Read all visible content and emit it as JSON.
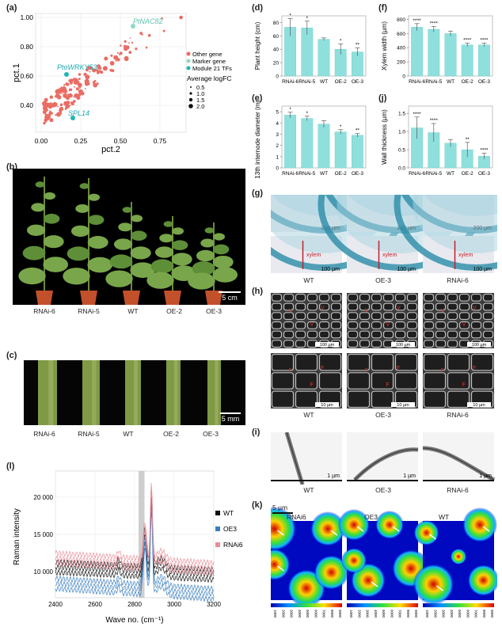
{
  "panels": {
    "a": "(a)",
    "b": "(b)",
    "c": "(c)",
    "d": "(d)",
    "e": "(e)",
    "f": "(f)",
    "g": "(g)",
    "h": "(h)",
    "i": "(i)",
    "j": "(j)",
    "k": "(k)",
    "l": "(l)"
  },
  "scatter_a": {
    "xlabel": "pct.2",
    "ylabel": "pct.1",
    "xticks": [
      "0.00",
      "0.25",
      "0.50",
      "0.75"
    ],
    "yticks": [
      "0.40",
      "0.60",
      "0.80",
      "1.00"
    ],
    "annotations": [
      "PtNAC82",
      "PtoWRKY53",
      "SPL14"
    ],
    "legend_items": [
      "Other gene",
      "Marker gene",
      "Module 21 TFs"
    ],
    "size_title": "Average logFC",
    "size_items": [
      "0.5",
      "1.0",
      "1.5",
      "2.0"
    ],
    "colors": {
      "other": "#ea6c63",
      "marker": "#8fd8c8",
      "module": "#1fb5b5"
    }
  },
  "photo_b": {
    "labels": [
      "RNAi-6",
      "RNAi-5",
      "WT",
      "OE-2",
      "OE-3"
    ],
    "scale": "5 cm"
  },
  "photo_c": {
    "labels": [
      "RNAi-6",
      "RNAi-5",
      "WT",
      "OE-2",
      "OE-3"
    ],
    "scale": "5 mm"
  },
  "micro_g": {
    "labels": [
      "WT",
      "OE-3",
      "RNAi-6"
    ],
    "scale_top": "200 µm",
    "scale_bottom": "100 µm",
    "xylem": "xylem"
  },
  "micro_h": {
    "labels": [
      "WT",
      "OE-3",
      "RNAi-6"
    ],
    "scale_top": "100 µm",
    "scale_bottom": "10 µm",
    "v": "V",
    "f": "F"
  },
  "micro_i": {
    "labels": [
      "WT",
      "OE-3",
      "RNAi-6"
    ],
    "scale": "1 µm"
  },
  "heatmap_k": {
    "labels": [
      "RNAi6",
      "OE3",
      "WT"
    ],
    "scale": "5 µm",
    "colorbar_ticks": [
      "1000",
      "2000",
      "3000",
      "4000",
      "5000",
      "6000",
      "7000",
      "8000",
      "9000"
    ]
  },
  "chart_data": [
    {
      "id": "d",
      "type": "bar",
      "ylabel": "Plant height (cm)",
      "categories": [
        "RNAi-6",
        "RNAi-5",
        "WT",
        "OE-2",
        "OE-3"
      ],
      "values": [
        73,
        72,
        55,
        40,
        36
      ],
      "errors": [
        13,
        10,
        2,
        8,
        6
      ],
      "significance": [
        "*",
        "*",
        "",
        "*",
        "**"
      ],
      "ylim": [
        0,
        90
      ],
      "yticks": [
        "0",
        "20",
        "40",
        "60",
        "80"
      ]
    },
    {
      "id": "e",
      "type": "bar",
      "ylabel": "13th internode diameter (mm)",
      "categories": [
        "RNAi-6",
        "RNAi-5",
        "WT",
        "OE-2",
        "OE-3"
      ],
      "values": [
        4.7,
        4.4,
        3.9,
        3.2,
        2.9
      ],
      "errors": [
        0.25,
        0.2,
        0.3,
        0.2,
        0.15
      ],
      "significance": [
        "*",
        "*",
        "",
        "*",
        "**"
      ],
      "ylim": [
        0,
        5.5
      ],
      "yticks": [
        "0",
        "1",
        "2",
        "3",
        "4",
        "5"
      ]
    },
    {
      "id": "f",
      "type": "bar",
      "ylabel": "Xylem width (µm)",
      "categories": [
        "RNAi-6",
        "RNAi-5",
        "WT",
        "OE-2",
        "OE-3"
      ],
      "values": [
        690,
        660,
        600,
        440,
        440
      ],
      "errors": [
        50,
        40,
        35,
        25,
        25
      ],
      "significance": [
        "****",
        "****",
        "",
        "****",
        "****"
      ],
      "ylim": [
        0,
        850
      ],
      "yticks": [
        "0",
        "200",
        "400",
        "600",
        "800"
      ]
    },
    {
      "id": "j",
      "type": "bar",
      "ylabel": "Wall thickness (µm)",
      "categories": [
        "RNAi-6",
        "RNAi-5",
        "WT",
        "OE-2",
        "OE-3"
      ],
      "values": [
        1.1,
        0.97,
        0.68,
        0.5,
        0.32
      ],
      "errors": [
        0.3,
        0.25,
        0.1,
        0.2,
        0.08
      ],
      "significance": [
        "****",
        "****",
        "",
        "**",
        "****"
      ],
      "ylim": [
        0,
        1.7
      ],
      "yticks": [
        "0.0",
        "0.5",
        "1.0",
        "1.5"
      ]
    },
    {
      "id": "l",
      "type": "line",
      "xlabel": "Wave no. (cm⁻¹)",
      "ylabel": "Raman intensity",
      "xlim": [
        2400,
        3200
      ],
      "ylim": [
        6500,
        23500
      ],
      "xticks": [
        "2400",
        "2600",
        "2800",
        "3000",
        "3200"
      ],
      "yticks": [
        "10 000",
        "15 000",
        "20 000"
      ],
      "highlight_band": [
        2820,
        2850
      ],
      "legend": [
        "WT",
        "OE3",
        "RNAi6"
      ],
      "series": [
        {
          "name": "WT",
          "color": "#111111",
          "baseline": [
            10600,
            10100,
            9600
          ],
          "peak_2850": 16000,
          "peak_2885": 20000
        },
        {
          "name": "OE3",
          "color": "#3a7fc1",
          "baseline": [
            8400,
            7700,
            7000
          ],
          "peak_2850": 15200,
          "peak_2885": 18800
        },
        {
          "name": "RNAi6",
          "color": "#e88e98",
          "baseline": [
            11800,
            11100,
            10500
          ],
          "peak_2850": 17200,
          "peak_2885": 21200
        }
      ]
    }
  ]
}
